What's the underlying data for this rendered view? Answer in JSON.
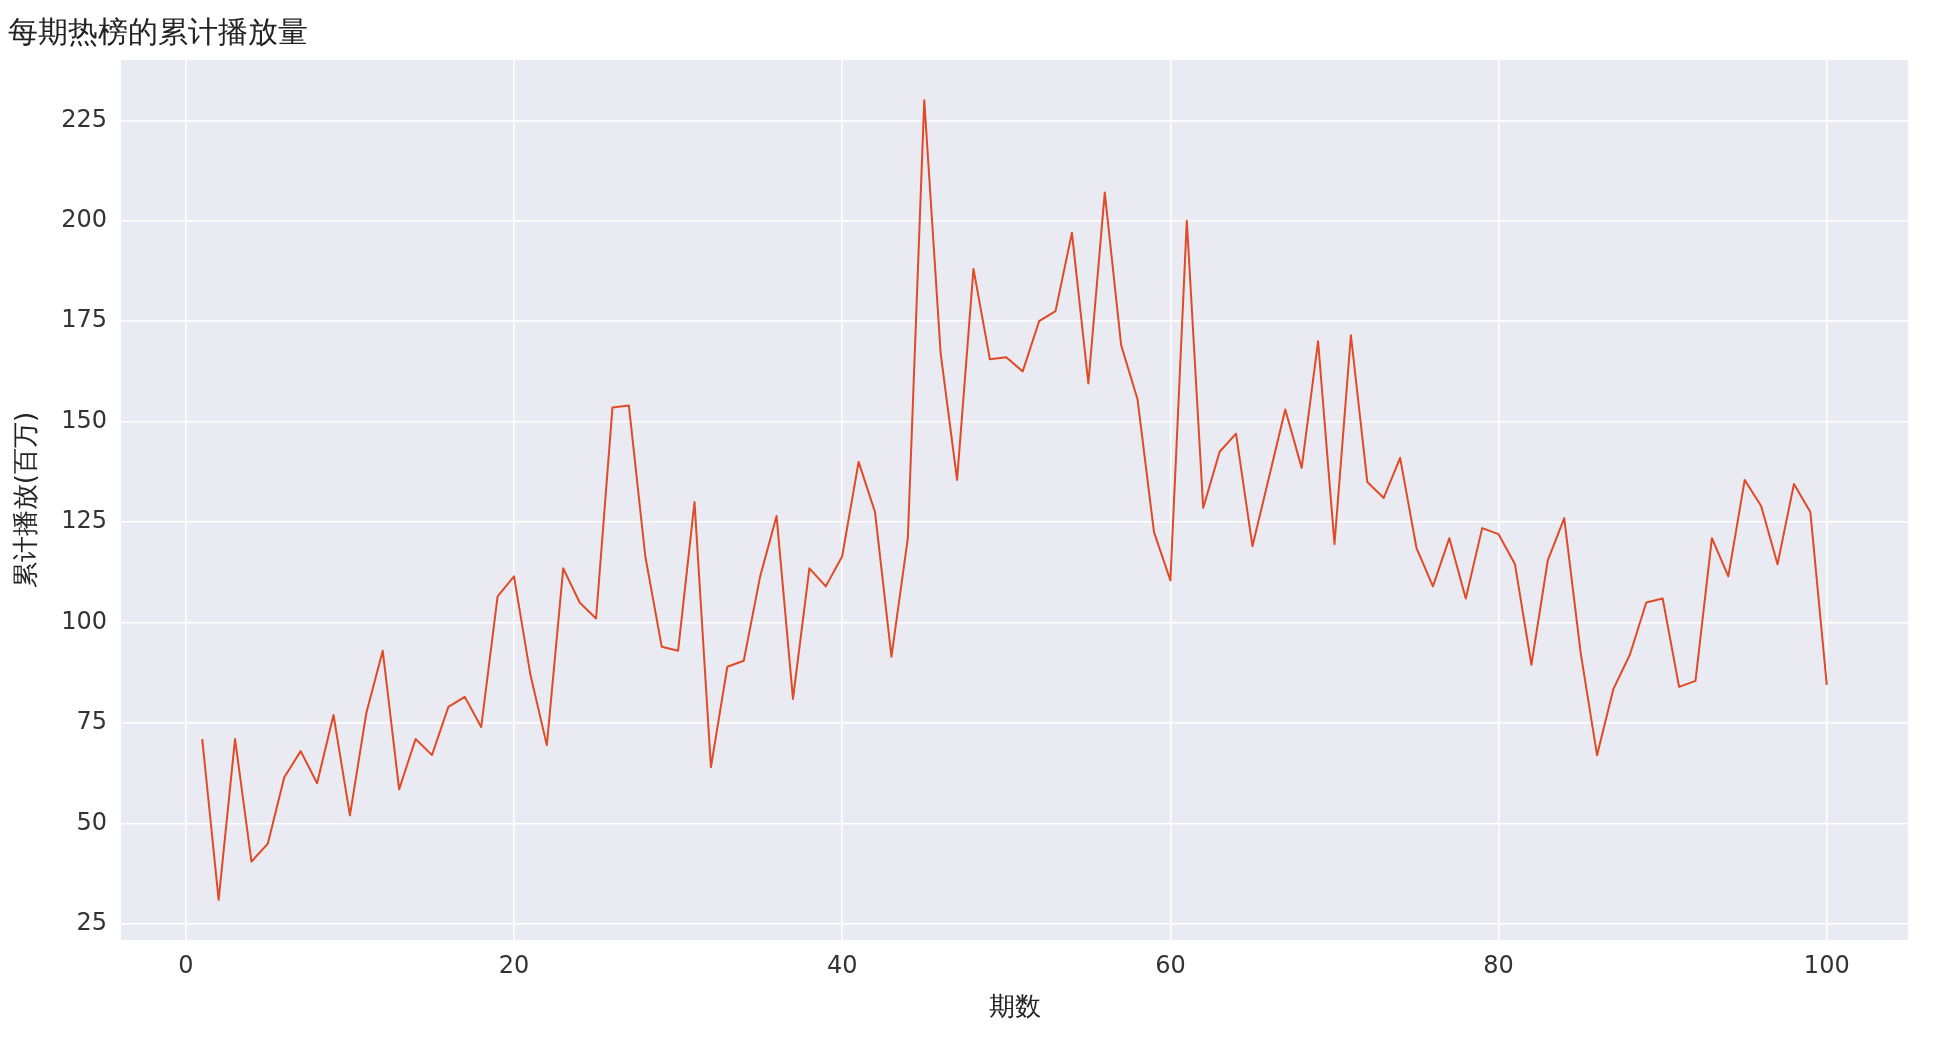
{
  "chart_data": {
    "type": "line",
    "title": "每期热榜的累计播放量",
    "xlabel": "期数",
    "ylabel": "累计播放(百万)",
    "x": [
      1,
      2,
      3,
      4,
      5,
      6,
      7,
      8,
      9,
      10,
      11,
      12,
      13,
      14,
      15,
      16,
      17,
      18,
      19,
      20,
      21,
      22,
      23,
      24,
      25,
      26,
      27,
      28,
      29,
      30,
      31,
      32,
      33,
      34,
      35,
      36,
      37,
      38,
      39,
      40,
      41,
      42,
      43,
      44,
      45,
      46,
      47,
      48,
      49,
      50,
      51,
      52,
      53,
      54,
      55,
      56,
      57,
      58,
      59,
      60,
      61,
      62,
      63,
      64,
      65,
      66,
      67,
      68,
      69,
      70,
      71,
      72,
      73,
      74,
      75,
      76,
      77,
      78,
      79,
      80,
      81,
      82,
      83,
      84,
      85,
      86,
      87,
      88,
      89,
      90,
      91,
      92,
      93,
      94,
      95,
      96,
      97,
      98,
      99,
      100
    ],
    "series": [
      {
        "color": "#e04a24",
        "values": [
          71,
          31,
          71,
          40.5,
          45,
          61.5,
          68,
          60,
          77,
          52,
          77.5,
          93,
          58.5,
          71,
          67,
          79,
          81.5,
          74,
          106.5,
          111.5,
          87,
          69.5,
          113.5,
          105,
          101,
          153.5,
          154,
          116.5,
          94,
          93,
          130,
          64,
          89,
          90.5,
          111.5,
          126.5,
          81,
          113.5,
          109,
          116.5,
          140,
          127.5,
          91.5,
          121,
          230,
          167,
          135.5,
          188,
          165.5,
          166,
          162.5,
          175,
          177.5,
          197,
          159.5,
          207,
          169,
          155.5,
          122.5,
          110.5,
          200,
          128.5,
          142.5,
          147,
          119,
          136,
          153,
          138.5,
          170,
          119.5,
          171.5,
          135,
          131,
          141,
          118.5,
          109,
          121,
          106,
          123.5,
          122,
          114.5,
          89.5,
          115.5,
          126,
          92.5,
          67,
          83.5,
          92,
          105,
          106,
          84,
          85.5,
          121,
          111.5,
          135.5,
          129,
          114.5,
          134.5,
          127.5,
          84.5
        ]
      }
    ],
    "xlim": [
      -3.95,
      104.95
    ],
    "xticks": [
      0,
      20,
      40,
      60,
      80,
      100
    ],
    "ylim": [
      21,
      240
    ],
    "yticks": [
      25,
      50,
      75,
      100,
      125,
      150,
      175,
      200,
      225
    ],
    "grid": true,
    "legend": false,
    "marker": "none",
    "line_style": "solid"
  }
}
